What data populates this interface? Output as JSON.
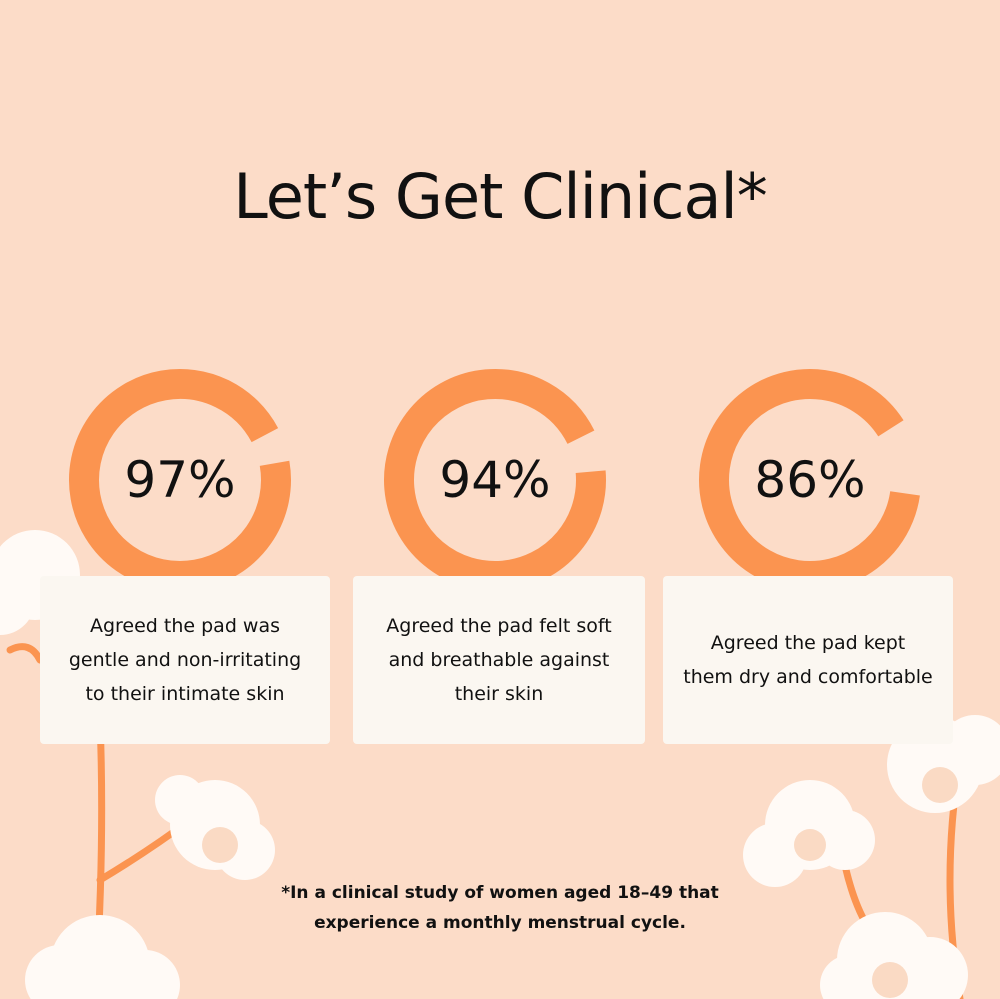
{
  "title": "Let’s Get Clinical*",
  "accent_color": "#fb9450",
  "background_color": "#fcdcc8",
  "card_color": "#fbf7f1",
  "stats": [
    {
      "value": "97%",
      "percent": 97,
      "description": "Agreed the pad was gentle and non-irritating to their intimate skin"
    },
    {
      "value": "94%",
      "percent": 94,
      "description": "Agreed the pad felt soft and breathable against their skin"
    },
    {
      "value": "86%",
      "percent": 86,
      "description": "Agreed the pad kept them dry and comfortable"
    }
  ],
  "footnote": "*In a clinical study of women aged 18–49 that experience a monthly menstrual cycle."
}
